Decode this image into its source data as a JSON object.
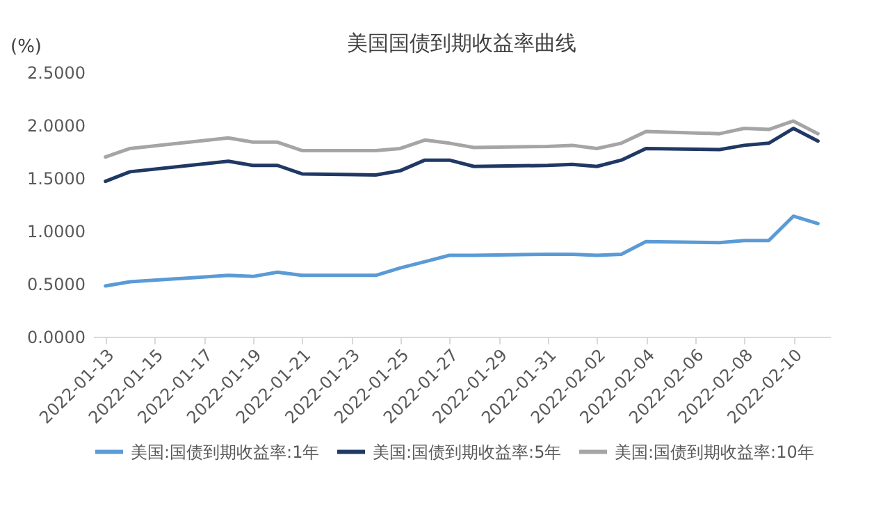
{
  "chart_data": {
    "type": "line",
    "title": "美国国债到期收益率曲线",
    "ylabel": "(%)",
    "x": [
      "2022-01-13",
      "2022-01-14",
      "2022-01-18",
      "2022-01-19",
      "2022-01-20",
      "2022-01-21",
      "2022-01-24",
      "2022-01-25",
      "2022-01-26",
      "2022-01-27",
      "2022-01-28",
      "2022-01-31",
      "2022-02-01",
      "2022-02-02",
      "2022-02-03",
      "2022-02-04",
      "2022-02-07",
      "2022-02-08",
      "2022-02-09",
      "2022-02-10",
      "2022-02-11"
    ],
    "series": [
      {
        "name": "美国:国债到期收益率:1年",
        "color": "#5b9bd5",
        "values": [
          0.48,
          0.52,
          0.58,
          0.57,
          0.61,
          0.58,
          0.58,
          0.65,
          0.71,
          0.77,
          0.77,
          0.78,
          0.78,
          0.77,
          0.78,
          0.9,
          0.89,
          0.91,
          0.91,
          1.14,
          1.07
        ]
      },
      {
        "name": "美国:国债到期收益率:5年",
        "color": "#203864",
        "values": [
          1.47,
          1.56,
          1.66,
          1.62,
          1.62,
          1.54,
          1.53,
          1.57,
          1.67,
          1.67,
          1.61,
          1.62,
          1.63,
          1.61,
          1.67,
          1.78,
          1.77,
          1.81,
          1.83,
          1.97,
          1.85
        ]
      },
      {
        "name": "美国:国债到期收益率:10年",
        "color": "#a5a5a5",
        "values": [
          1.7,
          1.78,
          1.88,
          1.84,
          1.84,
          1.76,
          1.76,
          1.78,
          1.86,
          1.83,
          1.79,
          1.8,
          1.81,
          1.78,
          1.83,
          1.94,
          1.92,
          1.97,
          1.96,
          2.04,
          1.92
        ]
      }
    ],
    "xlim": [
      "2022-01-12T12:00",
      "2022-02-11T12:00"
    ],
    "xticks": [
      "2022-01-13",
      "2022-01-15",
      "2022-01-17",
      "2022-01-19",
      "2022-01-21",
      "2022-01-23",
      "2022-01-25",
      "2022-01-27",
      "2022-01-29",
      "2022-01-31",
      "2022-02-02",
      "2022-02-04",
      "2022-02-06",
      "2022-02-08",
      "2022-02-10"
    ],
    "ylim": [
      0,
      2.5
    ],
    "yticks": [
      {
        "value": 0,
        "label": "0.0000"
      },
      {
        "value": 0.5,
        "label": "0.5000"
      },
      {
        "value": 1,
        "label": "1.0000"
      },
      {
        "value": 1.5,
        "label": "1.5000"
      },
      {
        "value": 2,
        "label": "2.0000"
      },
      {
        "value": 2.5,
        "label": "2.5000"
      }
    ],
    "grid": false,
    "legend": "bottom"
  }
}
